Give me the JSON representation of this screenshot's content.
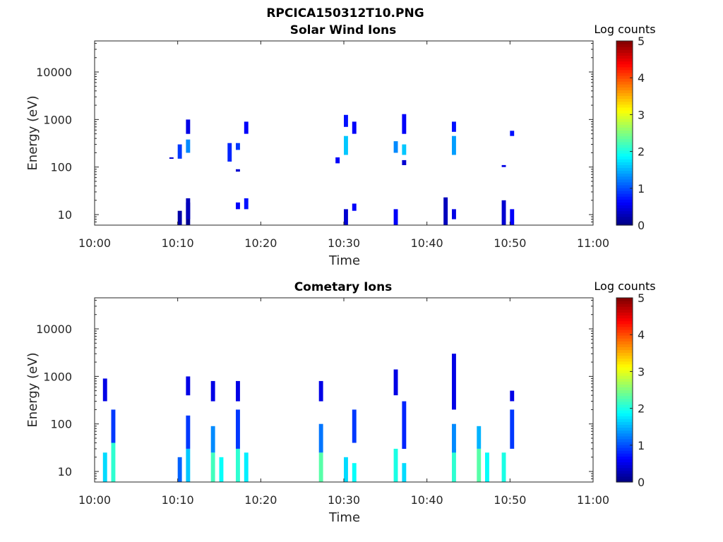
{
  "figure_title": "RPCICA150312T10.PNG",
  "colors": {
    "colormap": "jet",
    "axis": "#262626",
    "background": "#ffffff"
  },
  "chart_data": [
    {
      "type": "heatmap",
      "title": "Solar Wind Ions",
      "xlabel": "Time",
      "ylabel": "Energy (eV)",
      "x_ticks": [
        "10:00",
        "10:10",
        "10:20",
        "10:30",
        "10:40",
        "10:50",
        "11:00"
      ],
      "xlim": [
        "10:00",
        "11:00"
      ],
      "y_scale": "log",
      "y_ticks": [
        10,
        100,
        1000,
        10000
      ],
      "y_tick_labels": [
        "10",
        "100",
        "1000",
        "10000"
      ],
      "ylim": [
        6,
        45000
      ],
      "colorbar": {
        "label": "Log counts",
        "min": 0,
        "max": 5,
        "ticks": [
          "0",
          "1",
          "2",
          "3",
          "4",
          "5"
        ]
      },
      "cells": [
        [
          "10:10",
          6,
          12,
          0.2
        ],
        [
          "10:11",
          6,
          18,
          0.1
        ],
        [
          "10:11",
          8,
          22,
          0.3
        ],
        [
          "10:10",
          150,
          300,
          0.9
        ],
        [
          "10:11",
          200,
          380,
          1.3
        ],
        [
          "10:11",
          500,
          1000,
          0.5
        ],
        [
          "10:09",
          150,
          160,
          0.4
        ],
        [
          "10:17",
          13,
          18,
          0.6
        ],
        [
          "10:18",
          13,
          22,
          0.7
        ],
        [
          "10:16",
          130,
          320,
          0.8
        ],
        [
          "10:17",
          230,
          320,
          0.9
        ],
        [
          "10:18",
          500,
          900,
          0.6
        ],
        [
          "10:17",
          80,
          90,
          0.4
        ],
        [
          "10:30",
          6,
          13,
          0.4
        ],
        [
          "10:31",
          12,
          17,
          0.6
        ],
        [
          "10:29",
          120,
          160,
          0.6
        ],
        [
          "10:30",
          180,
          450,
          1.6
        ],
        [
          "10:30",
          700,
          1250,
          0.7
        ],
        [
          "10:31",
          500,
          900,
          0.6
        ],
        [
          "10:36",
          6,
          13,
          0.6
        ],
        [
          "10:36",
          200,
          350,
          1.3
        ],
        [
          "10:37",
          180,
          300,
          1.6
        ],
        [
          "10:37",
          500,
          1300,
          0.6
        ],
        [
          "10:37",
          110,
          140,
          0.4
        ],
        [
          "10:42",
          6,
          23,
          0.3
        ],
        [
          "10:43",
          8,
          13,
          0.5
        ],
        [
          "10:43",
          180,
          450,
          1.4
        ],
        [
          "10:43",
          550,
          900,
          0.7
        ],
        [
          "10:49",
          6,
          20,
          0.4
        ],
        [
          "10:50",
          6,
          13,
          0.6
        ],
        [
          "10:50",
          450,
          580,
          0.7
        ],
        [
          "10:49",
          100,
          110,
          0.5
        ]
      ]
    },
    {
      "type": "heatmap",
      "title": "Cometary Ions",
      "xlabel": "Time",
      "ylabel": "Energy (eV)",
      "x_ticks": [
        "10:00",
        "10:10",
        "10:20",
        "10:30",
        "10:40",
        "10:50",
        "11:00"
      ],
      "xlim": [
        "10:00",
        "11:00"
      ],
      "y_scale": "log",
      "y_ticks": [
        10,
        100,
        1000,
        10000
      ],
      "y_tick_labels": [
        "10",
        "100",
        "1000",
        "10000"
      ],
      "ylim": [
        6,
        45000
      ],
      "colorbar": {
        "label": "Log counts",
        "min": 0,
        "max": 5,
        "ticks": [
          "0",
          "1",
          "2",
          "3",
          "4",
          "5"
        ]
      },
      "cells": [
        [
          "10:01",
          6,
          25,
          1.7
        ],
        [
          "10:02",
          6,
          40,
          2.1
        ],
        [
          "10:02",
          40,
          200,
          0.9
        ],
        [
          "10:01",
          300,
          900,
          0.5
        ],
        [
          "10:10",
          6,
          20,
          1.1
        ],
        [
          "10:11",
          6,
          30,
          1.6
        ],
        [
          "10:11",
          30,
          150,
          0.9
        ],
        [
          "10:11",
          400,
          1000,
          0.5
        ],
        [
          "10:14",
          6,
          25,
          2.2
        ],
        [
          "10:14",
          25,
          90,
          1.3
        ],
        [
          "10:15",
          6,
          20,
          1.9
        ],
        [
          "10:14",
          300,
          800,
          0.5
        ],
        [
          "10:17",
          6,
          30,
          2.1
        ],
        [
          "10:18",
          6,
          25,
          1.8
        ],
        [
          "10:17",
          30,
          200,
          0.9
        ],
        [
          "10:17",
          300,
          800,
          0.5
        ],
        [
          "10:27",
          6,
          25,
          2.3
        ],
        [
          "10:27",
          25,
          100,
          1.2
        ],
        [
          "10:27",
          300,
          800,
          0.5
        ],
        [
          "10:30",
          6,
          20,
          1.7
        ],
        [
          "10:31",
          6,
          15,
          1.9
        ],
        [
          "10:31",
          40,
          200,
          0.9
        ],
        [
          "10:36",
          6,
          30,
          2.0
        ],
        [
          "10:37",
          6,
          15,
          1.7
        ],
        [
          "10:37",
          30,
          300,
          0.8
        ],
        [
          "10:36",
          400,
          1400,
          0.5
        ],
        [
          "10:43",
          6,
          30,
          2.1
        ],
        [
          "10:43",
          25,
          100,
          1.3
        ],
        [
          "10:43",
          200,
          3000,
          0.5
        ],
        [
          "10:46",
          6,
          30,
          2.3
        ],
        [
          "10:46",
          30,
          90,
          1.5
        ],
        [
          "10:47",
          6,
          25,
          1.9
        ],
        [
          "10:49",
          6,
          25,
          2.0
        ],
        [
          "10:50",
          30,
          200,
          0.9
        ],
        [
          "10:50",
          300,
          500,
          0.5
        ]
      ]
    }
  ]
}
